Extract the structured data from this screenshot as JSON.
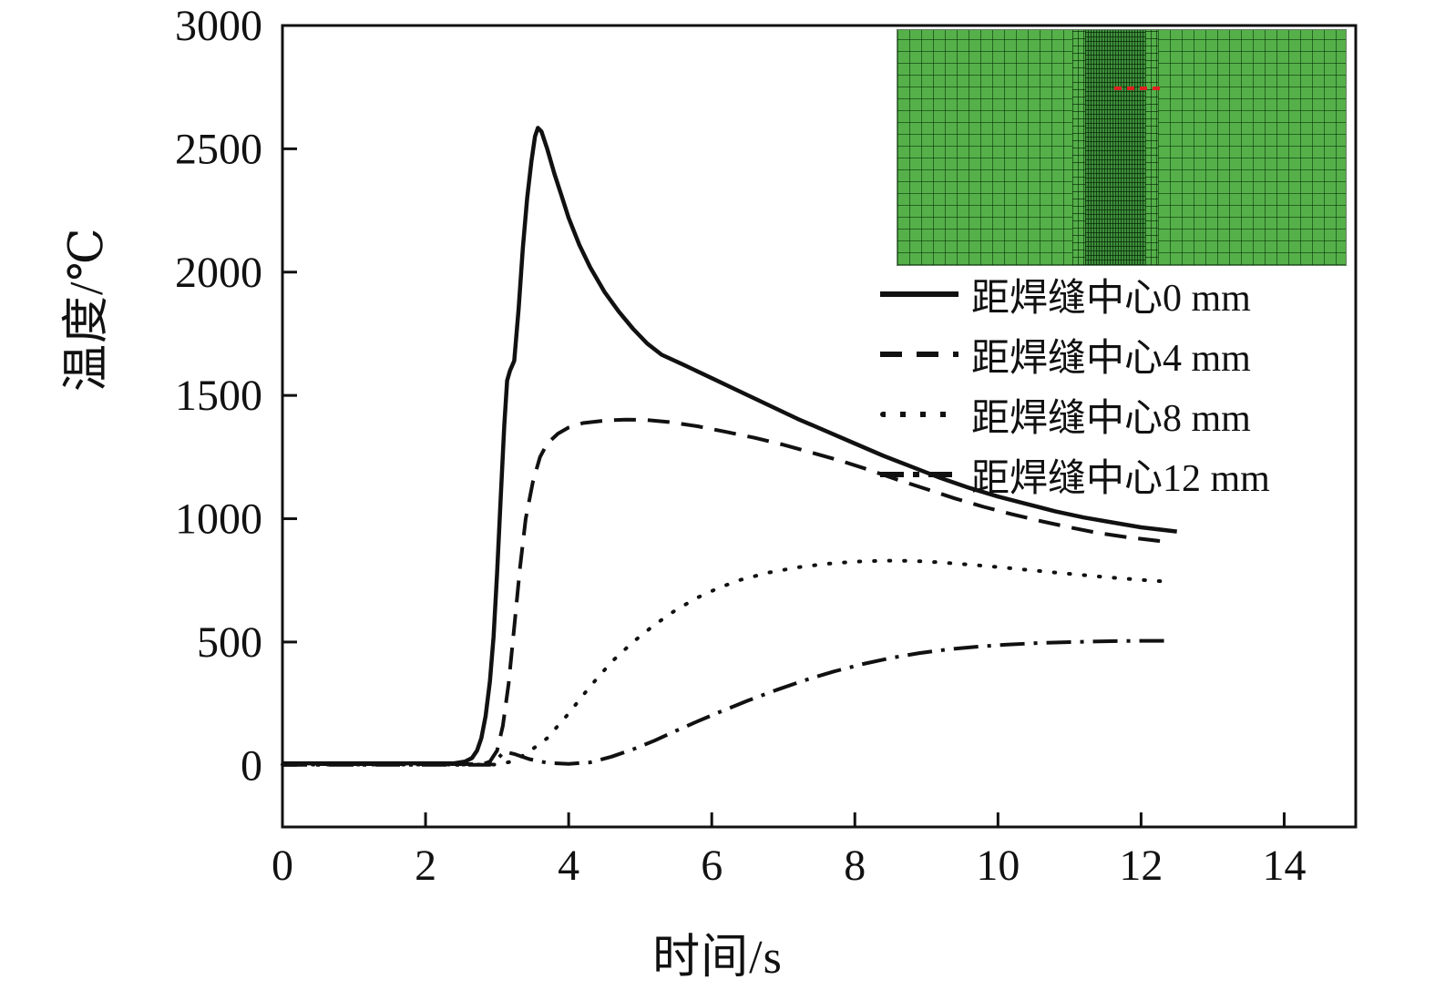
{
  "chart_data": {
    "type": "line",
    "title": "",
    "xlabel": "时间/s",
    "ylabel": "温度/℃",
    "xlim": [
      0,
      15
    ],
    "ylim": [
      -250,
      3000
    ],
    "xticks": [
      0,
      2,
      4,
      6,
      8,
      10,
      12,
      14
    ],
    "yticks": [
      0,
      500,
      1000,
      1500,
      2000,
      2500,
      3000
    ],
    "grid": false,
    "legend_position": "right-middle",
    "axis_color": "#111111",
    "series": [
      {
        "name": "距焊缝中心0 mm",
        "style": "solid",
        "color": "#111111",
        "points": [
          [
            0,
            8
          ],
          [
            1,
            8
          ],
          [
            2,
            8
          ],
          [
            2.4,
            8
          ],
          [
            2.55,
            15
          ],
          [
            2.65,
            30
          ],
          [
            2.72,
            60
          ],
          [
            2.78,
            110
          ],
          [
            2.84,
            200
          ],
          [
            2.9,
            340
          ],
          [
            2.95,
            520
          ],
          [
            3.0,
            780
          ],
          [
            3.05,
            1080
          ],
          [
            3.1,
            1380
          ],
          [
            3.14,
            1560
          ],
          [
            3.18,
            1600
          ],
          [
            3.24,
            1640
          ],
          [
            3.3,
            1850
          ],
          [
            3.36,
            2100
          ],
          [
            3.42,
            2300
          ],
          [
            3.48,
            2450
          ],
          [
            3.53,
            2550
          ],
          [
            3.57,
            2585
          ],
          [
            3.62,
            2570
          ],
          [
            3.7,
            2500
          ],
          [
            3.8,
            2400
          ],
          [
            3.9,
            2310
          ],
          [
            4.0,
            2220
          ],
          [
            4.15,
            2110
          ],
          [
            4.3,
            2020
          ],
          [
            4.5,
            1920
          ],
          [
            4.7,
            1840
          ],
          [
            4.9,
            1770
          ],
          [
            5.1,
            1710
          ],
          [
            5.3,
            1665
          ],
          [
            5.6,
            1625
          ],
          [
            6.0,
            1570
          ],
          [
            6.4,
            1515
          ],
          [
            6.8,
            1460
          ],
          [
            7.2,
            1405
          ],
          [
            7.6,
            1355
          ],
          [
            8.0,
            1305
          ],
          [
            8.4,
            1255
          ],
          [
            8.8,
            1210
          ],
          [
            9.2,
            1165
          ],
          [
            9.6,
            1125
          ],
          [
            10.0,
            1090
          ],
          [
            10.4,
            1060
          ],
          [
            10.8,
            1030
          ],
          [
            11.2,
            1005
          ],
          [
            11.6,
            985
          ],
          [
            12.0,
            965
          ],
          [
            12.5,
            948
          ]
        ]
      },
      {
        "name": "距焊缝中心4 mm",
        "style": "dashed",
        "color": "#111111",
        "points": [
          [
            0,
            5
          ],
          [
            2.8,
            5
          ],
          [
            2.9,
            15
          ],
          [
            3.0,
            60
          ],
          [
            3.08,
            160
          ],
          [
            3.16,
            330
          ],
          [
            3.24,
            560
          ],
          [
            3.32,
            800
          ],
          [
            3.4,
            1000
          ],
          [
            3.5,
            1150
          ],
          [
            3.6,
            1250
          ],
          [
            3.7,
            1305
          ],
          [
            3.85,
            1345
          ],
          [
            4.0,
            1370
          ],
          [
            4.2,
            1388
          ],
          [
            4.5,
            1398
          ],
          [
            4.8,
            1402
          ],
          [
            5.1,
            1400
          ],
          [
            5.4,
            1392
          ],
          [
            5.8,
            1375
          ],
          [
            6.2,
            1352
          ],
          [
            6.6,
            1328
          ],
          [
            7.0,
            1300
          ],
          [
            7.4,
            1268
          ],
          [
            7.8,
            1235
          ],
          [
            8.2,
            1198
          ],
          [
            8.6,
            1158
          ],
          [
            9.0,
            1120
          ],
          [
            9.4,
            1082
          ],
          [
            9.8,
            1048
          ],
          [
            10.2,
            1018
          ],
          [
            10.6,
            990
          ],
          [
            11.0,
            965
          ],
          [
            11.4,
            942
          ],
          [
            11.8,
            925
          ],
          [
            12.3,
            908
          ]
        ]
      },
      {
        "name": "距焊缝中心8 mm",
        "style": "dotted",
        "color": "#111111",
        "points": [
          [
            0,
            3
          ],
          [
            3.0,
            3
          ],
          [
            3.2,
            15
          ],
          [
            3.4,
            45
          ],
          [
            3.7,
            110
          ],
          [
            4.0,
            210
          ],
          [
            4.3,
            320
          ],
          [
            4.6,
            420
          ],
          [
            4.9,
            500
          ],
          [
            5.2,
            570
          ],
          [
            5.5,
            630
          ],
          [
            5.8,
            680
          ],
          [
            6.1,
            720
          ],
          [
            6.4,
            752
          ],
          [
            6.8,
            782
          ],
          [
            7.2,
            803
          ],
          [
            7.6,
            817
          ],
          [
            8.0,
            826
          ],
          [
            8.4,
            830
          ],
          [
            8.8,
            829
          ],
          [
            9.2,
            823
          ],
          [
            9.6,
            814
          ],
          [
            10.0,
            804
          ],
          [
            10.4,
            793
          ],
          [
            10.8,
            782
          ],
          [
            11.2,
            771
          ],
          [
            11.6,
            761
          ],
          [
            12.0,
            752
          ],
          [
            12.3,
            746
          ]
        ]
      },
      {
        "name": "距焊缝中心12 mm",
        "style": "dashdot",
        "color": "#111111",
        "points": [
          [
            0,
            2
          ],
          [
            2.9,
            2
          ],
          [
            3.0,
            25
          ],
          [
            3.1,
            55
          ],
          [
            3.25,
            45
          ],
          [
            3.45,
            25
          ],
          [
            3.7,
            10
          ],
          [
            4.0,
            6
          ],
          [
            4.3,
            12
          ],
          [
            4.6,
            35
          ],
          [
            4.9,
            65
          ],
          [
            5.2,
            100
          ],
          [
            5.5,
            140
          ],
          [
            5.8,
            178
          ],
          [
            6.1,
            215
          ],
          [
            6.5,
            262
          ],
          [
            6.9,
            305
          ],
          [
            7.3,
            345
          ],
          [
            7.7,
            380
          ],
          [
            8.1,
            410
          ],
          [
            8.5,
            435
          ],
          [
            8.9,
            455
          ],
          [
            9.3,
            470
          ],
          [
            9.7,
            481
          ],
          [
            10.1,
            489
          ],
          [
            10.5,
            495
          ],
          [
            10.9,
            499
          ],
          [
            11.3,
            502
          ],
          [
            11.7,
            504
          ],
          [
            12.1,
            505
          ],
          [
            12.4,
            505
          ]
        ]
      }
    ]
  },
  "inset": {
    "description": "finite-element-mesh with refined weld band and red weld-path markers",
    "base_color": "#55b04a",
    "fine_band_color": "#3f8f3c",
    "marker_color": "#e02020"
  }
}
